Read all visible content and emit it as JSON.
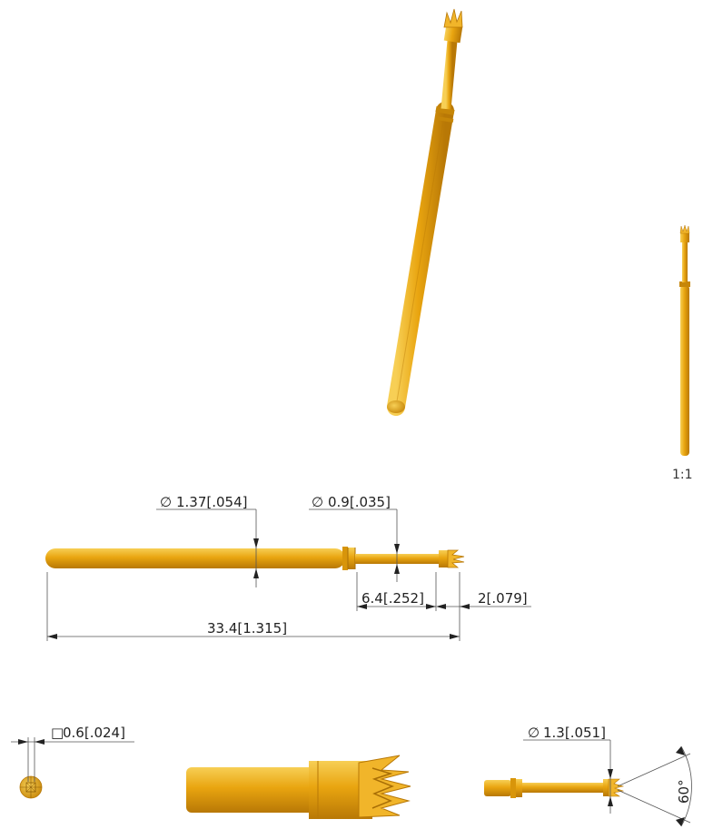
{
  "colors": {
    "gold": "#e7a20c",
    "gold_light": "#f6c53a",
    "gold_dark": "#b87806",
    "dimension_line": "#555555"
  },
  "scale_label": "1:1",
  "dimensions": {
    "body_diameter": "1.37[.054]",
    "plunger_diameter": "0.9[.035]",
    "plunger_length": "6.4[.252]",
    "tip_length": "2[.079]",
    "overall_length": "33.4[1.315]",
    "square_size": "0.6[.024]",
    "tip_diameter": "1.3[.051]",
    "tip_angle": "60°"
  },
  "symbols": {
    "diameter": "∅",
    "square": "□"
  }
}
